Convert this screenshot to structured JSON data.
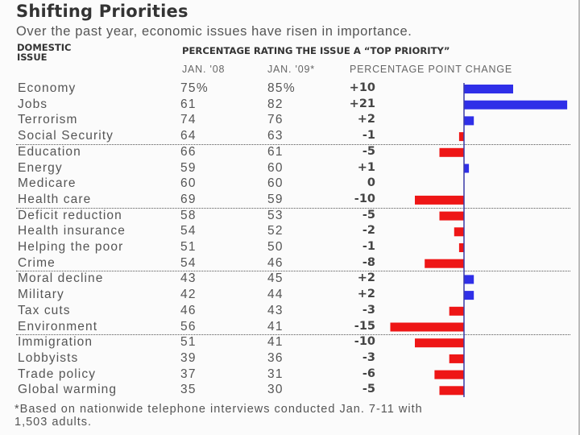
{
  "title": "Shifting Priorities",
  "subtitle": "Over the past year, economic issues have risen in importance.",
  "headers": {
    "issue_line1": "DOMESTIC",
    "issue_line2": "ISSUE",
    "percentage": "PERCENTAGE RATING THE ISSUE A “TOP PRIORITY”",
    "jan08": "JAN. '08",
    "jan09": "JAN. '09*",
    "change": "PERCENTAGE POINT CHANGE"
  },
  "footnote_line1": "*Based on nationwide telephone interviews conducted Jan. 7-11 with",
  "footnote_line2": "1,503 adults.",
  "colors": {
    "positive": "#2f2fe8",
    "negative": "#ee1616",
    "axis": "#3a3aa8"
  },
  "chart_data": {
    "type": "bar",
    "orientation": "horizontal",
    "title": "Shifting Priorities",
    "subtitle": "Over the past year, economic issues have risen in importance.",
    "xlabel": "PERCENTAGE POINT CHANGE",
    "ylabel": "DOMESTIC ISSUE",
    "xlim": [
      -15,
      21
    ],
    "grid": false,
    "legend": "none",
    "categories": [
      "Economy",
      "Jobs",
      "Terrorism",
      "Social Security",
      "Education",
      "Energy",
      "Medicare",
      "Health care",
      "Deficit reduction",
      "Health insurance",
      "Helping the poor",
      "Crime",
      "Moral decline",
      "Military",
      "Tax cuts",
      "Environment",
      "Immigration",
      "Lobbyists",
      "Trade policy",
      "Global warming"
    ],
    "jan08_display": [
      "75%",
      "61",
      "74",
      "64",
      "66",
      "59",
      "60",
      "69",
      "58",
      "54",
      "51",
      "54",
      "43",
      "42",
      "46",
      "56",
      "51",
      "39",
      "37",
      "35"
    ],
    "jan09_display": [
      "85%",
      "82",
      "76",
      "63",
      "61",
      "60",
      "60",
      "59",
      "53",
      "52",
      "50",
      "46",
      "45",
      "44",
      "43",
      "41",
      "41",
      "36",
      "31",
      "30"
    ],
    "change_display": [
      "+10",
      "+21",
      "+2",
      "-1",
      "-5",
      "+1",
      "0",
      "-10",
      "-5",
      "-2",
      "-1",
      "-8",
      "+2",
      "+2",
      "-3",
      "-15",
      "-10",
      "-3",
      "-6",
      "-5"
    ],
    "series": [
      {
        "name": "Jan. '08",
        "values": [
          75,
          61,
          74,
          64,
          66,
          59,
          60,
          69,
          58,
          54,
          51,
          54,
          43,
          42,
          46,
          56,
          51,
          39,
          37,
          35
        ]
      },
      {
        "name": "Jan. '09",
        "values": [
          85,
          82,
          76,
          63,
          61,
          60,
          60,
          59,
          53,
          52,
          50,
          46,
          45,
          44,
          43,
          41,
          41,
          36,
          31,
          30
        ]
      },
      {
        "name": "Percentage point change",
        "values": [
          10,
          21,
          2,
          -1,
          -5,
          1,
          0,
          -10,
          -5,
          -2,
          -1,
          -8,
          2,
          2,
          -3,
          -15,
          -10,
          -3,
          -6,
          -5
        ]
      }
    ],
    "group_dividers_after": [
      3,
      7,
      11,
      15
    ]
  }
}
